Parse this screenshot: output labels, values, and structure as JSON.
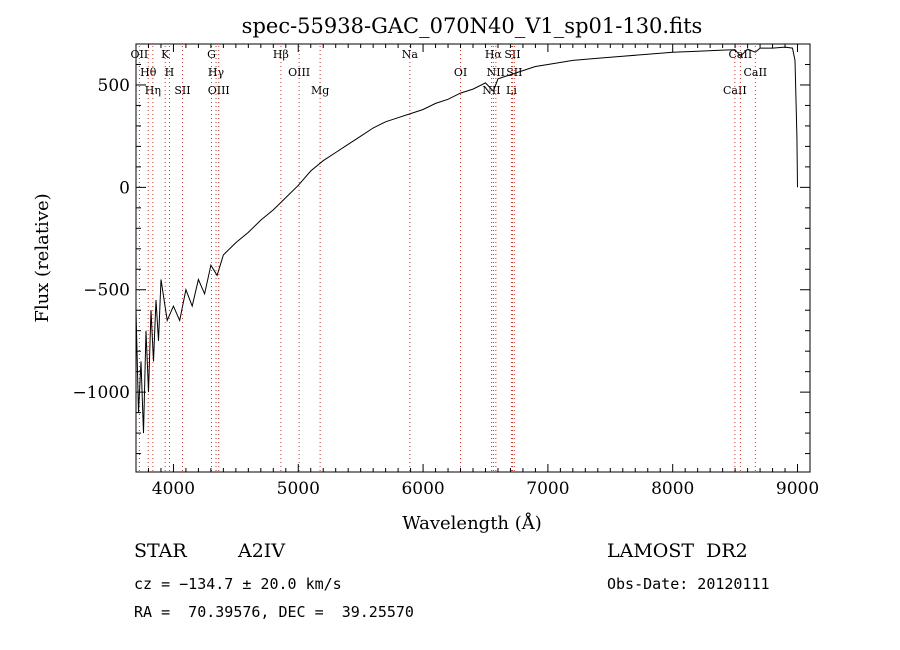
{
  "chart_data": {
    "type": "line",
    "title": "spec-55938-GAC_070N40_V1_sp01-130.fits",
    "xlabel": "Wavelength (Å)",
    "ylabel": "Flux (relative)",
    "xlim": [
      3700,
      9100
    ],
    "ylim": [
      -1390,
      700
    ],
    "xticks": [
      4000,
      5000,
      6000,
      7000,
      8000,
      9000
    ],
    "xtick_labels": [
      "4000",
      "5000",
      "6000",
      "7000",
      "8000",
      "9000"
    ],
    "yticks": [
      -1000,
      -500,
      0,
      500
    ],
    "ytick_labels": [
      "−1000",
      "−500",
      "0",
      "500"
    ],
    "grid": false,
    "series": [
      {
        "x": [
          3700,
          3720,
          3740,
          3760,
          3780,
          3800,
          3820,
          3840,
          3860,
          3880,
          3900,
          3950,
          4000,
          4050,
          4100,
          4150,
          4200,
          4250,
          4300,
          4350,
          4400,
          4500,
          4600,
          4700,
          4800,
          4900,
          5000,
          5100,
          5200,
          5300,
          5400,
          5500,
          5600,
          5700,
          5800,
          5900,
          6000,
          6100,
          6200,
          6300,
          6400,
          6500,
          6563,
          6600,
          6700,
          6800,
          6900,
          7000,
          7200,
          7400,
          7600,
          7800,
          8000,
          8200,
          8400,
          8500,
          8542,
          8600,
          8662,
          8700,
          8800,
          8900,
          8960,
          8980,
          8995,
          9000
        ],
        "y": [
          -600,
          -1100,
          -850,
          -1200,
          -700,
          -1000,
          -600,
          -850,
          -550,
          -750,
          -450,
          -650,
          -580,
          -650,
          -500,
          -580,
          -450,
          -520,
          -380,
          -430,
          -330,
          -270,
          -220,
          -160,
          -110,
          -50,
          10,
          80,
          130,
          170,
          210,
          250,
          290,
          320,
          340,
          360,
          380,
          410,
          430,
          460,
          480,
          510,
          470,
          530,
          550,
          570,
          590,
          600,
          620,
          630,
          640,
          650,
          660,
          665,
          670,
          672,
          640,
          675,
          660,
          680,
          680,
          685,
          680,
          620,
          250,
          0
        ]
      }
    ],
    "line_markers": [
      {
        "name": "OII",
        "x": 3727
      },
      {
        "name": "Hθ",
        "x": 3798
      },
      {
        "name": "Hη",
        "x": 3835
      },
      {
        "name": "K",
        "x": 3934
      },
      {
        "name": "H",
        "x": 3968
      },
      {
        "name": "SII",
        "x": 4072
      },
      {
        "name": "G",
        "x": 4305
      },
      {
        "name": "Hγ",
        "x": 4341
      },
      {
        "name": "OIII",
        "x": 4363
      },
      {
        "name": "Hβ",
        "x": 4861
      },
      {
        "name": "OIII",
        "x": 5007
      },
      {
        "name": "Mg",
        "x": 5175
      },
      {
        "name": "Na",
        "x": 5894
      },
      {
        "name": "OI",
        "x": 6300
      },
      {
        "name": "NII",
        "x": 6548
      },
      {
        "name": "Hα",
        "x": 6563
      },
      {
        "name": "NII",
        "x": 6583
      },
      {
        "name": "Li",
        "x": 6708
      },
      {
        "name": "SII",
        "x": 6716
      },
      {
        "name": "SII",
        "x": 6731
      },
      {
        "name": "CaII",
        "x": 8498
      },
      {
        "name": "CaII",
        "x": 8542
      },
      {
        "name": "CaII",
        "x": 8662
      }
    ]
  },
  "info": {
    "object_type": "STAR",
    "subclass": "A2IV",
    "survey": "LAMOST  DR2",
    "cz_line": "cz = −134.7 ± 20.0 km/s",
    "obs_date": "Obs-Date: 20120111",
    "radec": "RA =  70.39576, DEC =  39.25570"
  }
}
